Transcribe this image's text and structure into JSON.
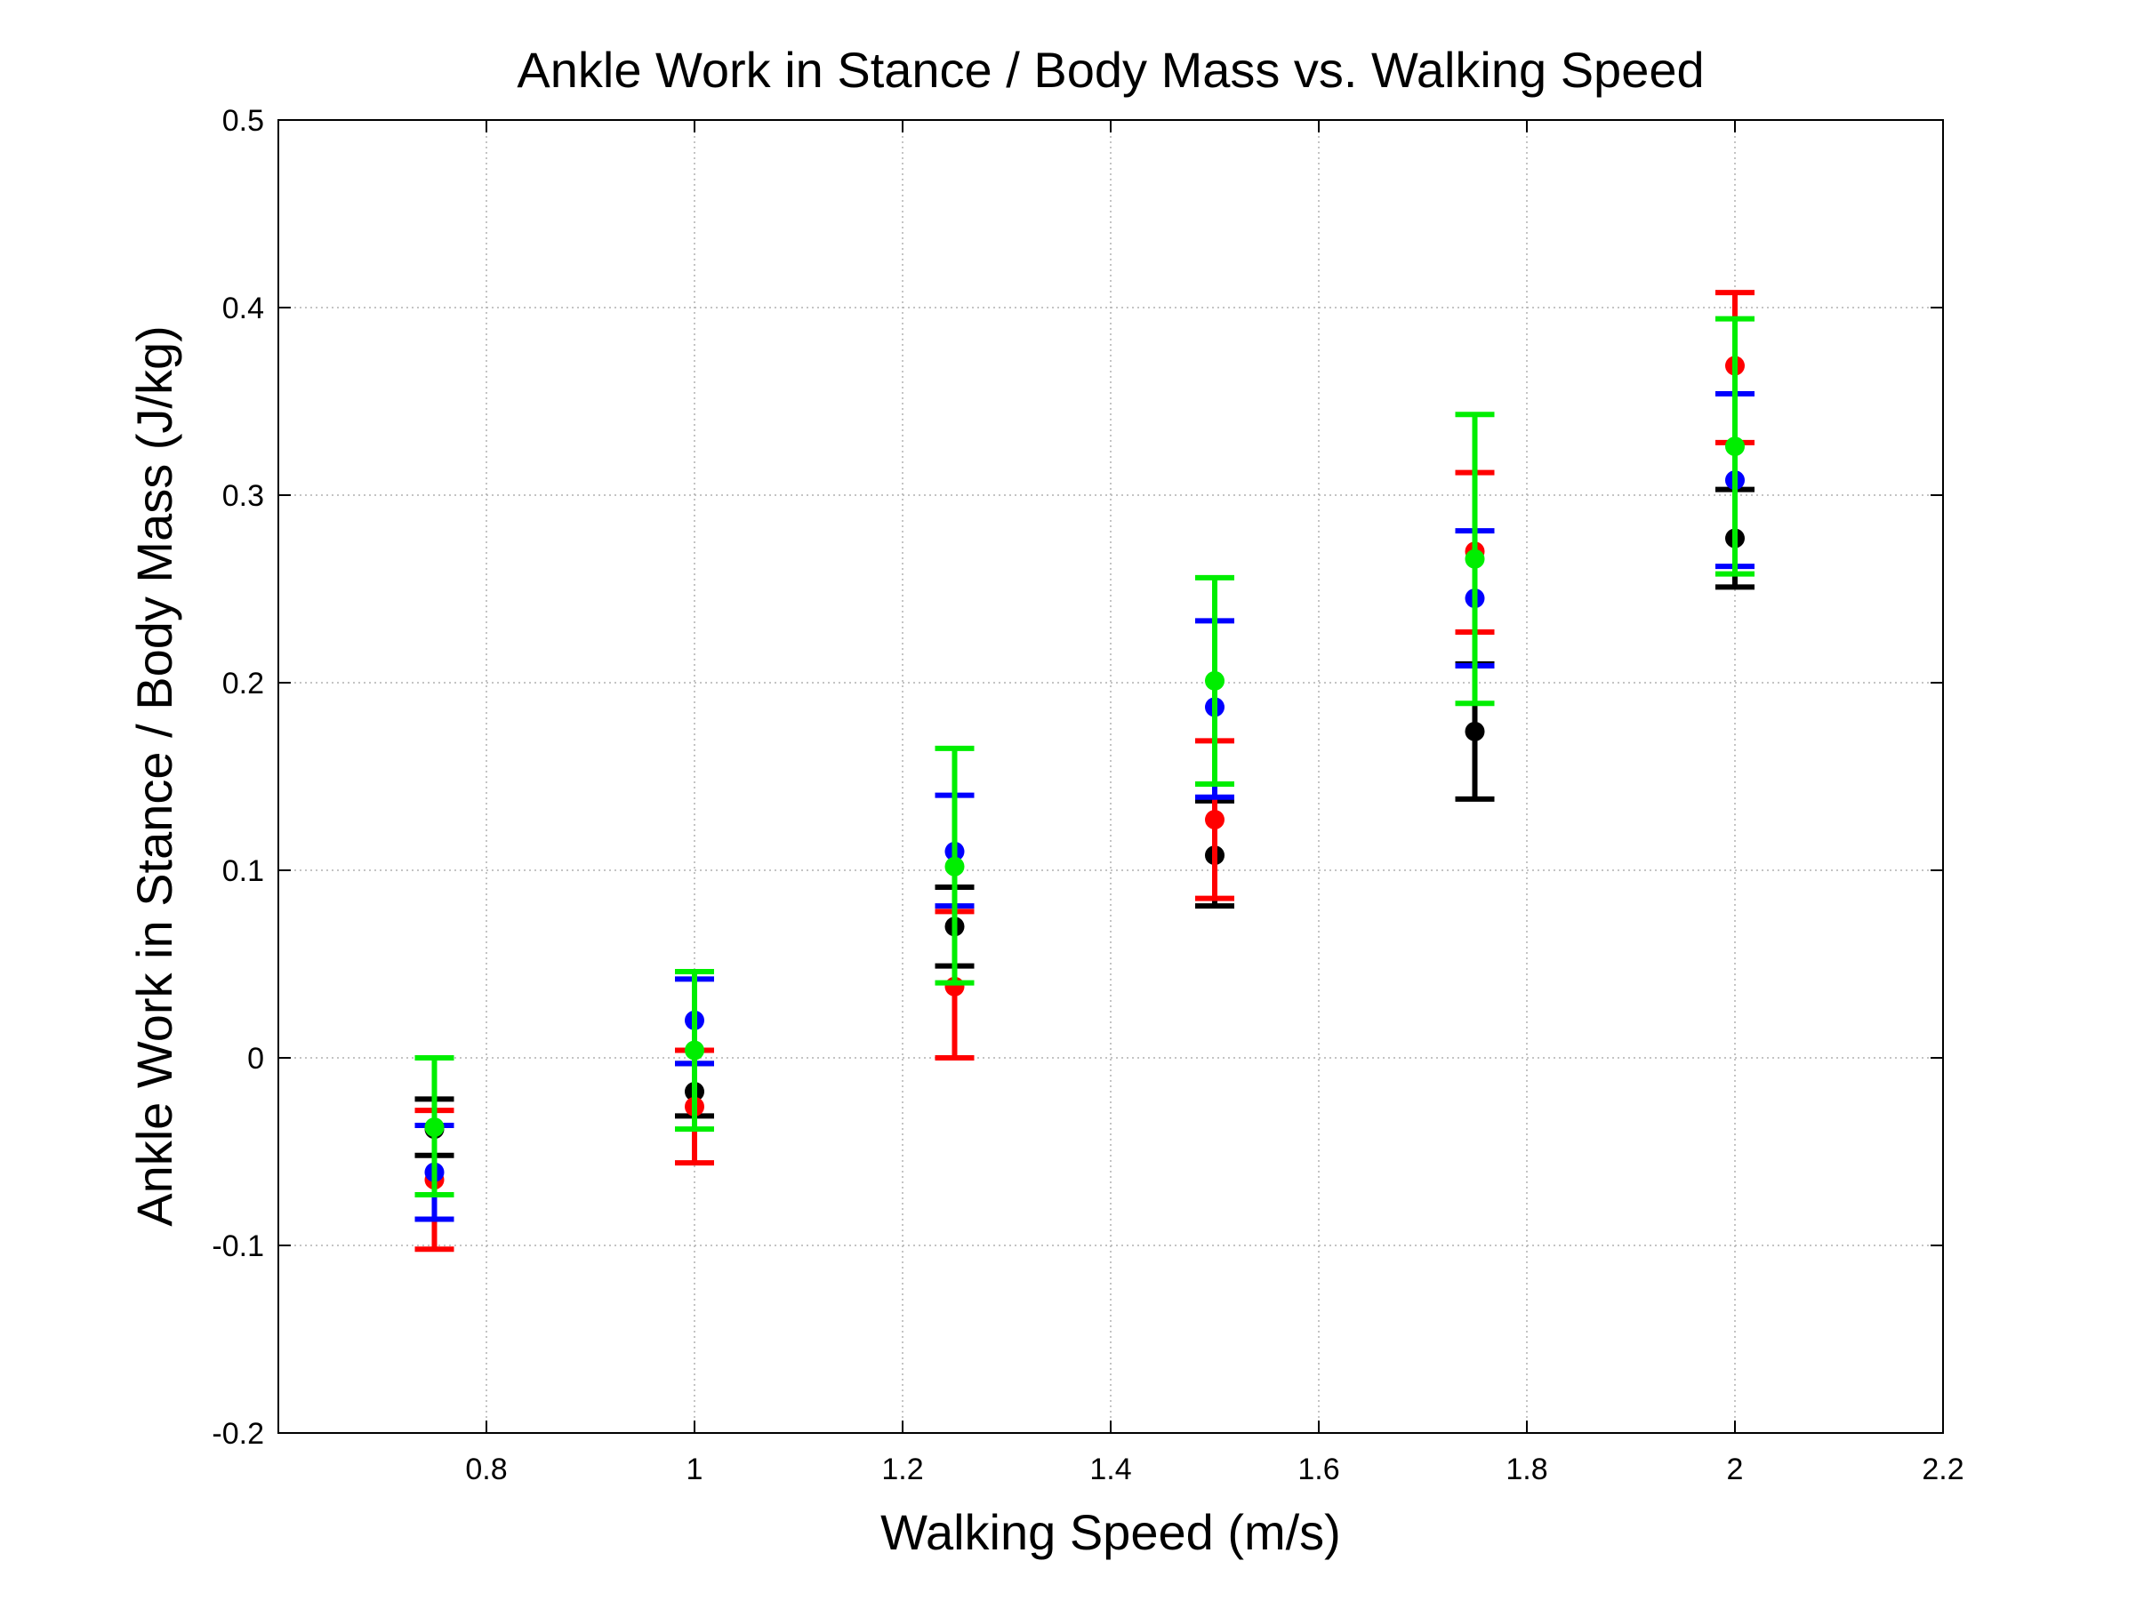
{
  "chart_data": {
    "type": "scatter",
    "title": "Ankle Work in Stance / Body Mass vs. Walking Speed",
    "xlabel": "Walking Speed (m/s)",
    "ylabel": "Ankle Work in Stance / Body Mass (J/kg)",
    "xlim": [
      0.6,
      2.2
    ],
    "ylim": [
      -0.2,
      0.5
    ],
    "xticks": [
      0.8,
      1,
      1.2,
      1.4,
      1.6,
      1.8,
      2,
      2.2
    ],
    "xtick_labels": [
      "0.8",
      "1",
      "1.2",
      "1.4",
      "1.6",
      "1.8",
      "2",
      "2.2"
    ],
    "yticks": [
      -0.2,
      -0.1,
      0,
      0.1,
      0.2,
      0.3,
      0.4,
      0.5
    ],
    "ytick_labels": [
      "-0.2",
      "-0.1",
      "0",
      "0.1",
      "0.2",
      "0.3",
      "0.4",
      "0.5"
    ],
    "grid": true,
    "legend": false,
    "x": [
      0.75,
      1.0,
      1.25,
      1.5,
      1.75,
      2.0
    ],
    "series": [
      {
        "color": "#000000",
        "y": [
          -0.038,
          -0.018,
          0.07,
          0.108,
          0.174,
          0.277
        ],
        "err_low": [
          -0.052,
          -0.031,
          0.049,
          0.081,
          0.138,
          0.251
        ],
        "err_high": [
          -0.022,
          -0.003,
          0.091,
          0.137,
          0.21,
          0.303
        ]
      },
      {
        "color": "#ff0000",
        "y": [
          -0.065,
          -0.026,
          0.038,
          0.127,
          0.27,
          0.369
        ],
        "err_low": [
          -0.102,
          -0.056,
          0.0,
          0.085,
          0.227,
          0.328
        ],
        "err_high": [
          -0.028,
          0.004,
          0.078,
          0.169,
          0.312,
          0.408
        ]
      },
      {
        "color": "#0000ff",
        "y": [
          -0.061,
          0.02,
          0.11,
          0.187,
          0.245,
          0.308
        ],
        "err_low": [
          -0.086,
          -0.003,
          0.081,
          0.139,
          0.209,
          0.262
        ],
        "err_high": [
          -0.036,
          0.042,
          0.14,
          0.233,
          0.281,
          0.354
        ]
      },
      {
        "color": "#00ee00",
        "y": [
          -0.037,
          0.004,
          0.102,
          0.201,
          0.266,
          0.326
        ],
        "err_low": [
          -0.073,
          -0.038,
          0.04,
          0.146,
          0.189,
          0.258
        ],
        "err_high": [
          0.0,
          0.046,
          0.165,
          0.256,
          0.343,
          0.394
        ]
      }
    ]
  }
}
